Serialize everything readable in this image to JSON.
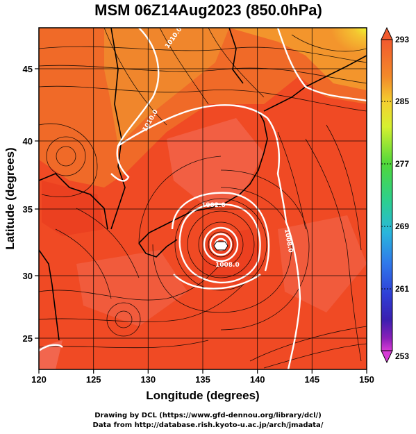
{
  "title": "MSM 06Z14Aug2023 (850.0hPa)",
  "xlabel": "Longitude (degrees)",
  "ylabel": "Latitude  (degrees)",
  "x_ticks": [
    "120",
    "125",
    "130",
    "135",
    "140",
    "145",
    "150"
  ],
  "y_ticks": [
    "25",
    "30",
    "35",
    "40",
    "45"
  ],
  "colorbar": {
    "ticks": [
      "293",
      "285",
      "277",
      "269",
      "261",
      "253"
    ],
    "colors": [
      "#f25a2e",
      "#f38a2a",
      "#f4cf30",
      "#d6f030",
      "#4fd83a",
      "#2ccf90",
      "#29b6dc",
      "#2f78ea",
      "#2f3ed6",
      "#3a1fb0",
      "#8a1fb8",
      "#d63ad6"
    ]
  },
  "contour_labels": [
    "1002.0",
    "1008.0",
    "1008.0",
    "1010.0",
    "1010.0"
  ],
  "chart_data": {
    "type": "map",
    "variable": "temperature and streamlines",
    "xlim": [
      120,
      150
    ],
    "ylim": [
      22.8,
      48
    ],
    "colorbar_range": [
      253,
      293
    ],
    "typhoon_center": {
      "lon": 136.8,
      "lat": 32.2
    }
  },
  "footer": {
    "line1": "Drawing by DCL (https://www.gfd-dennou.org/library/dcl/)",
    "line2": "Data from http://database.rish.kyoto-u.ac.jp/arch/jmadata/"
  }
}
